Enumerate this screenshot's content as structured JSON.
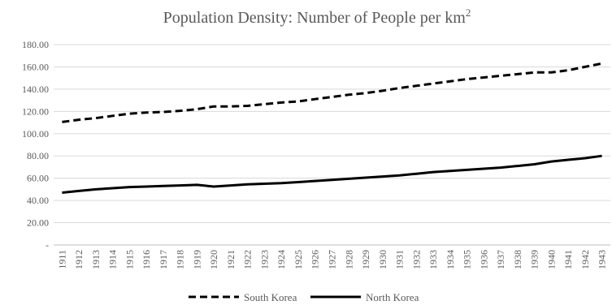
{
  "chart_data": {
    "type": "line",
    "title": "Population Density: Number of People per km",
    "title_superscript": "2",
    "x": [
      "1911",
      "1912",
      "1913",
      "1914",
      "1915",
      "1916",
      "1917",
      "1918",
      "1919",
      "1920",
      "1921",
      "1922",
      "1923",
      "1924",
      "1925",
      "1926",
      "1927",
      "1928",
      "1929",
      "1930",
      "1931",
      "1932",
      "1933",
      "1934",
      "1935",
      "1936",
      "1937",
      "1938",
      "1939",
      "1940",
      "1941",
      "1942",
      "1943"
    ],
    "y_ticks": [
      "-",
      "20.00",
      "40.00",
      "60.00",
      "80.00",
      "100.00",
      "120.00",
      "140.00",
      "160.00",
      "180.00"
    ],
    "ylim": [
      0,
      180
    ],
    "grid": true,
    "legend_position": "bottom",
    "series": [
      {
        "name": "South Korea",
        "style": "dashed",
        "color": "#000000",
        "values": [
          110.5,
          112.5,
          114,
          116,
          118,
          119,
          119.5,
          120.5,
          122,
          124.5,
          124.5,
          125,
          126.5,
          128,
          129,
          131,
          133,
          135,
          136.5,
          138.5,
          141,
          143,
          145,
          147,
          149,
          150.5,
          152,
          153.5,
          155,
          155,
          157,
          160,
          163
        ]
      },
      {
        "name": "North Korea",
        "style": "solid",
        "color": "#000000",
        "values": [
          47,
          48.5,
          50,
          51,
          52,
          52.5,
          53,
          53.5,
          54,
          52.5,
          53.5,
          54.5,
          55,
          55.5,
          56.5,
          57.5,
          58.5,
          59.5,
          60.5,
          61.5,
          62.5,
          64,
          65.5,
          66.5,
          67.5,
          68.5,
          69.5,
          71,
          72.5,
          75,
          76.5,
          78,
          80
        ]
      }
    ]
  }
}
